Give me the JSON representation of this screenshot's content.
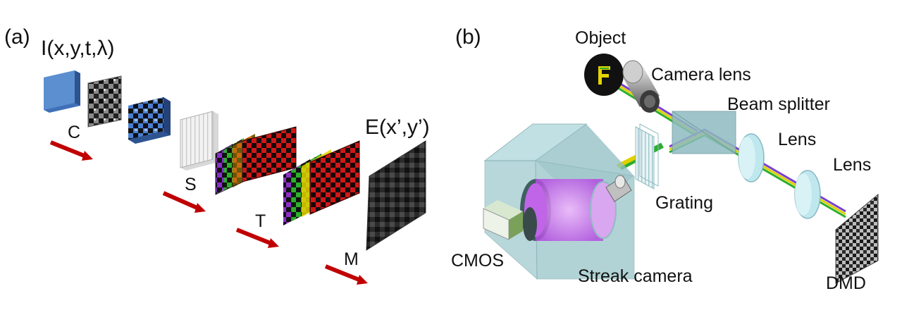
{
  "panel_a": {
    "panel_label": "(a)",
    "input_label": "I(x,y,t,λ)",
    "output_label": "E(x’,y’)",
    "operators": [
      "C",
      "S",
      "T",
      "M"
    ]
  },
  "panel_b": {
    "panel_label": "(b)",
    "components": {
      "object": "Object",
      "camera_lens": "Camera lens",
      "beam_splitter": "Beam splitter",
      "lens_1": "Lens",
      "lens_2": "Lens",
      "grating": "Grating",
      "cmos": "CMOS",
      "streak_camera": "Streak camera",
      "dmd": "DMD"
    }
  },
  "colors": {
    "arrow": "#c00000",
    "cube": "#5b8fd0",
    "code_blue": "#4a7fd0",
    "code_red": "#d01818",
    "phosphor": "#cf6cf0",
    "box_glass": "#9fc8cc",
    "lens_glass": "#bfe7ee"
  }
}
